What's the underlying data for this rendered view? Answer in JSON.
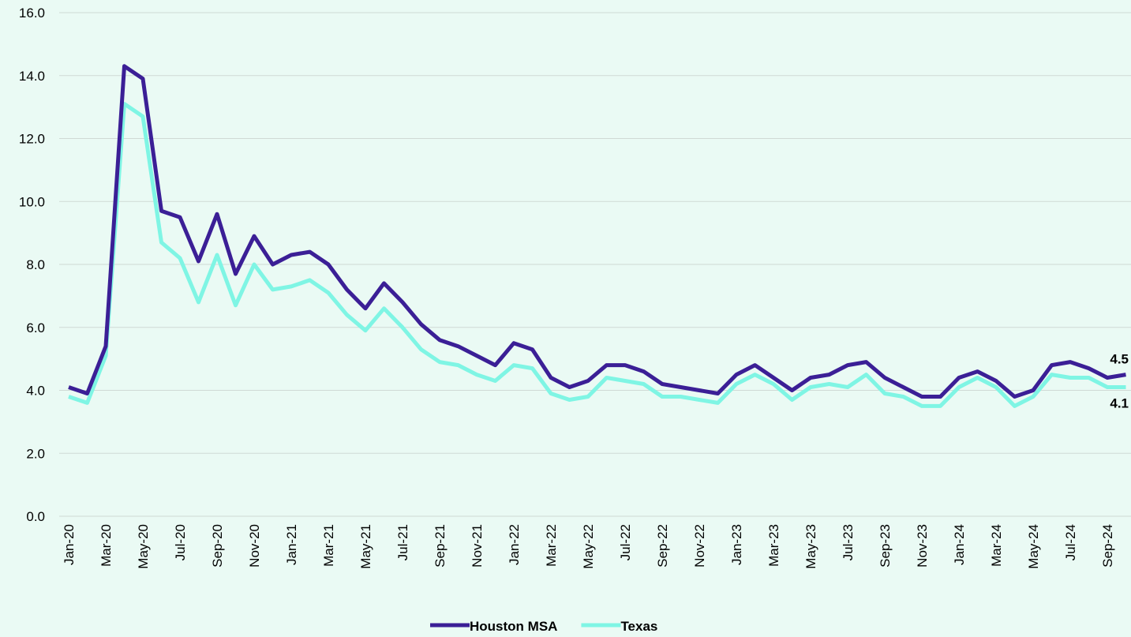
{
  "chart_data": {
    "type": "line",
    "categories": [
      "Jan-20",
      null,
      "Mar-20",
      null,
      "May-20",
      null,
      "Jul-20",
      null,
      "Sep-20",
      null,
      "Nov-20",
      null,
      "Jan-21",
      null,
      "Mar-21",
      null,
      "May-21",
      null,
      "Jul-21",
      null,
      "Sep-21",
      null,
      "Nov-21",
      null,
      "Jan-22",
      null,
      "Mar-22",
      null,
      "May-22",
      null,
      "Jul-22",
      null,
      "Sep-22",
      null,
      "Nov-22",
      null,
      "Jan-23",
      null,
      "Mar-23",
      null,
      "May-23",
      null,
      "Jul-23",
      null,
      "Sep-23",
      null,
      "Nov-23",
      null,
      "Jan-24",
      null,
      "Mar-24",
      null,
      "May-24",
      null,
      "Jul-24",
      null,
      "Sep-24",
      null
    ],
    "series": [
      {
        "name": "Houston MSA",
        "color": "#3b1f96",
        "values": [
          4.1,
          3.9,
          5.4,
          14.3,
          13.9,
          9.7,
          9.5,
          8.1,
          9.6,
          7.7,
          8.9,
          8.0,
          8.3,
          8.4,
          8.0,
          7.2,
          6.6,
          7.4,
          6.8,
          6.1,
          5.6,
          5.4,
          5.1,
          4.8,
          5.5,
          5.3,
          4.4,
          4.1,
          4.3,
          4.8,
          4.8,
          4.6,
          4.2,
          4.1,
          4.0,
          3.9,
          4.5,
          4.8,
          4.4,
          4.0,
          4.4,
          4.5,
          4.8,
          4.9,
          4.4,
          4.1,
          3.8,
          3.8,
          4.4,
          4.6,
          4.3,
          3.8,
          4.0,
          4.8,
          4.9,
          4.7,
          4.4,
          4.5
        ],
        "value_labels": [
          null,
          null,
          null,
          null,
          null,
          null,
          null,
          null,
          null,
          null,
          null,
          null,
          null,
          null,
          null,
          null,
          null,
          null,
          null,
          null,
          null,
          null,
          null,
          null,
          null,
          null,
          null,
          null,
          null,
          null,
          null,
          null,
          null,
          null,
          null,
          null,
          null,
          null,
          null,
          null,
          null,
          null,
          null,
          null,
          null,
          null,
          null,
          null,
          null,
          null,
          null,
          null,
          null,
          null,
          null,
          null,
          null,
          "4.5"
        ]
      },
      {
        "name": "Texas",
        "color": "#7ff5e4",
        "values": [
          3.8,
          3.6,
          5.1,
          13.1,
          12.7,
          8.7,
          8.2,
          6.8,
          8.3,
          6.7,
          8.0,
          7.2,
          7.3,
          7.5,
          7.1,
          6.4,
          5.9,
          6.6,
          6.0,
          5.3,
          4.9,
          4.8,
          4.5,
          4.3,
          4.8,
          4.7,
          3.9,
          3.7,
          3.8,
          4.4,
          4.3,
          4.2,
          3.8,
          3.8,
          3.7,
          3.6,
          4.2,
          4.5,
          4.2,
          3.7,
          4.1,
          4.2,
          4.1,
          4.5,
          3.9,
          3.8,
          3.5,
          3.5,
          4.1,
          4.4,
          4.1,
          3.5,
          3.8,
          4.5,
          4.4,
          4.4,
          4.1,
          4.1
        ],
        "value_labels": [
          null,
          null,
          null,
          null,
          null,
          null,
          null,
          null,
          null,
          null,
          null,
          null,
          null,
          null,
          null,
          null,
          null,
          null,
          null,
          null,
          null,
          null,
          null,
          null,
          null,
          null,
          null,
          null,
          null,
          null,
          null,
          null,
          null,
          null,
          null,
          null,
          null,
          null,
          null,
          null,
          null,
          null,
          null,
          null,
          null,
          null,
          null,
          null,
          null,
          null,
          null,
          null,
          null,
          null,
          null,
          null,
          null,
          "4.1"
        ]
      }
    ],
    "ylim": [
      0,
      16
    ],
    "yticks": [
      {
        "value": 0,
        "label": "0.0"
      },
      {
        "value": 2,
        "label": "2.0"
      },
      {
        "value": 4,
        "label": "4.0"
      },
      {
        "value": 6,
        "label": "6.0"
      },
      {
        "value": 8,
        "label": "8.0"
      },
      {
        "value": 10,
        "label": "10.0"
      },
      {
        "value": 12,
        "label": "12.0"
      },
      {
        "value": 14,
        "label": "14.0"
      },
      {
        "value": 16,
        "label": "16.0"
      }
    ],
    "grid": true,
    "legend": "bottom"
  }
}
